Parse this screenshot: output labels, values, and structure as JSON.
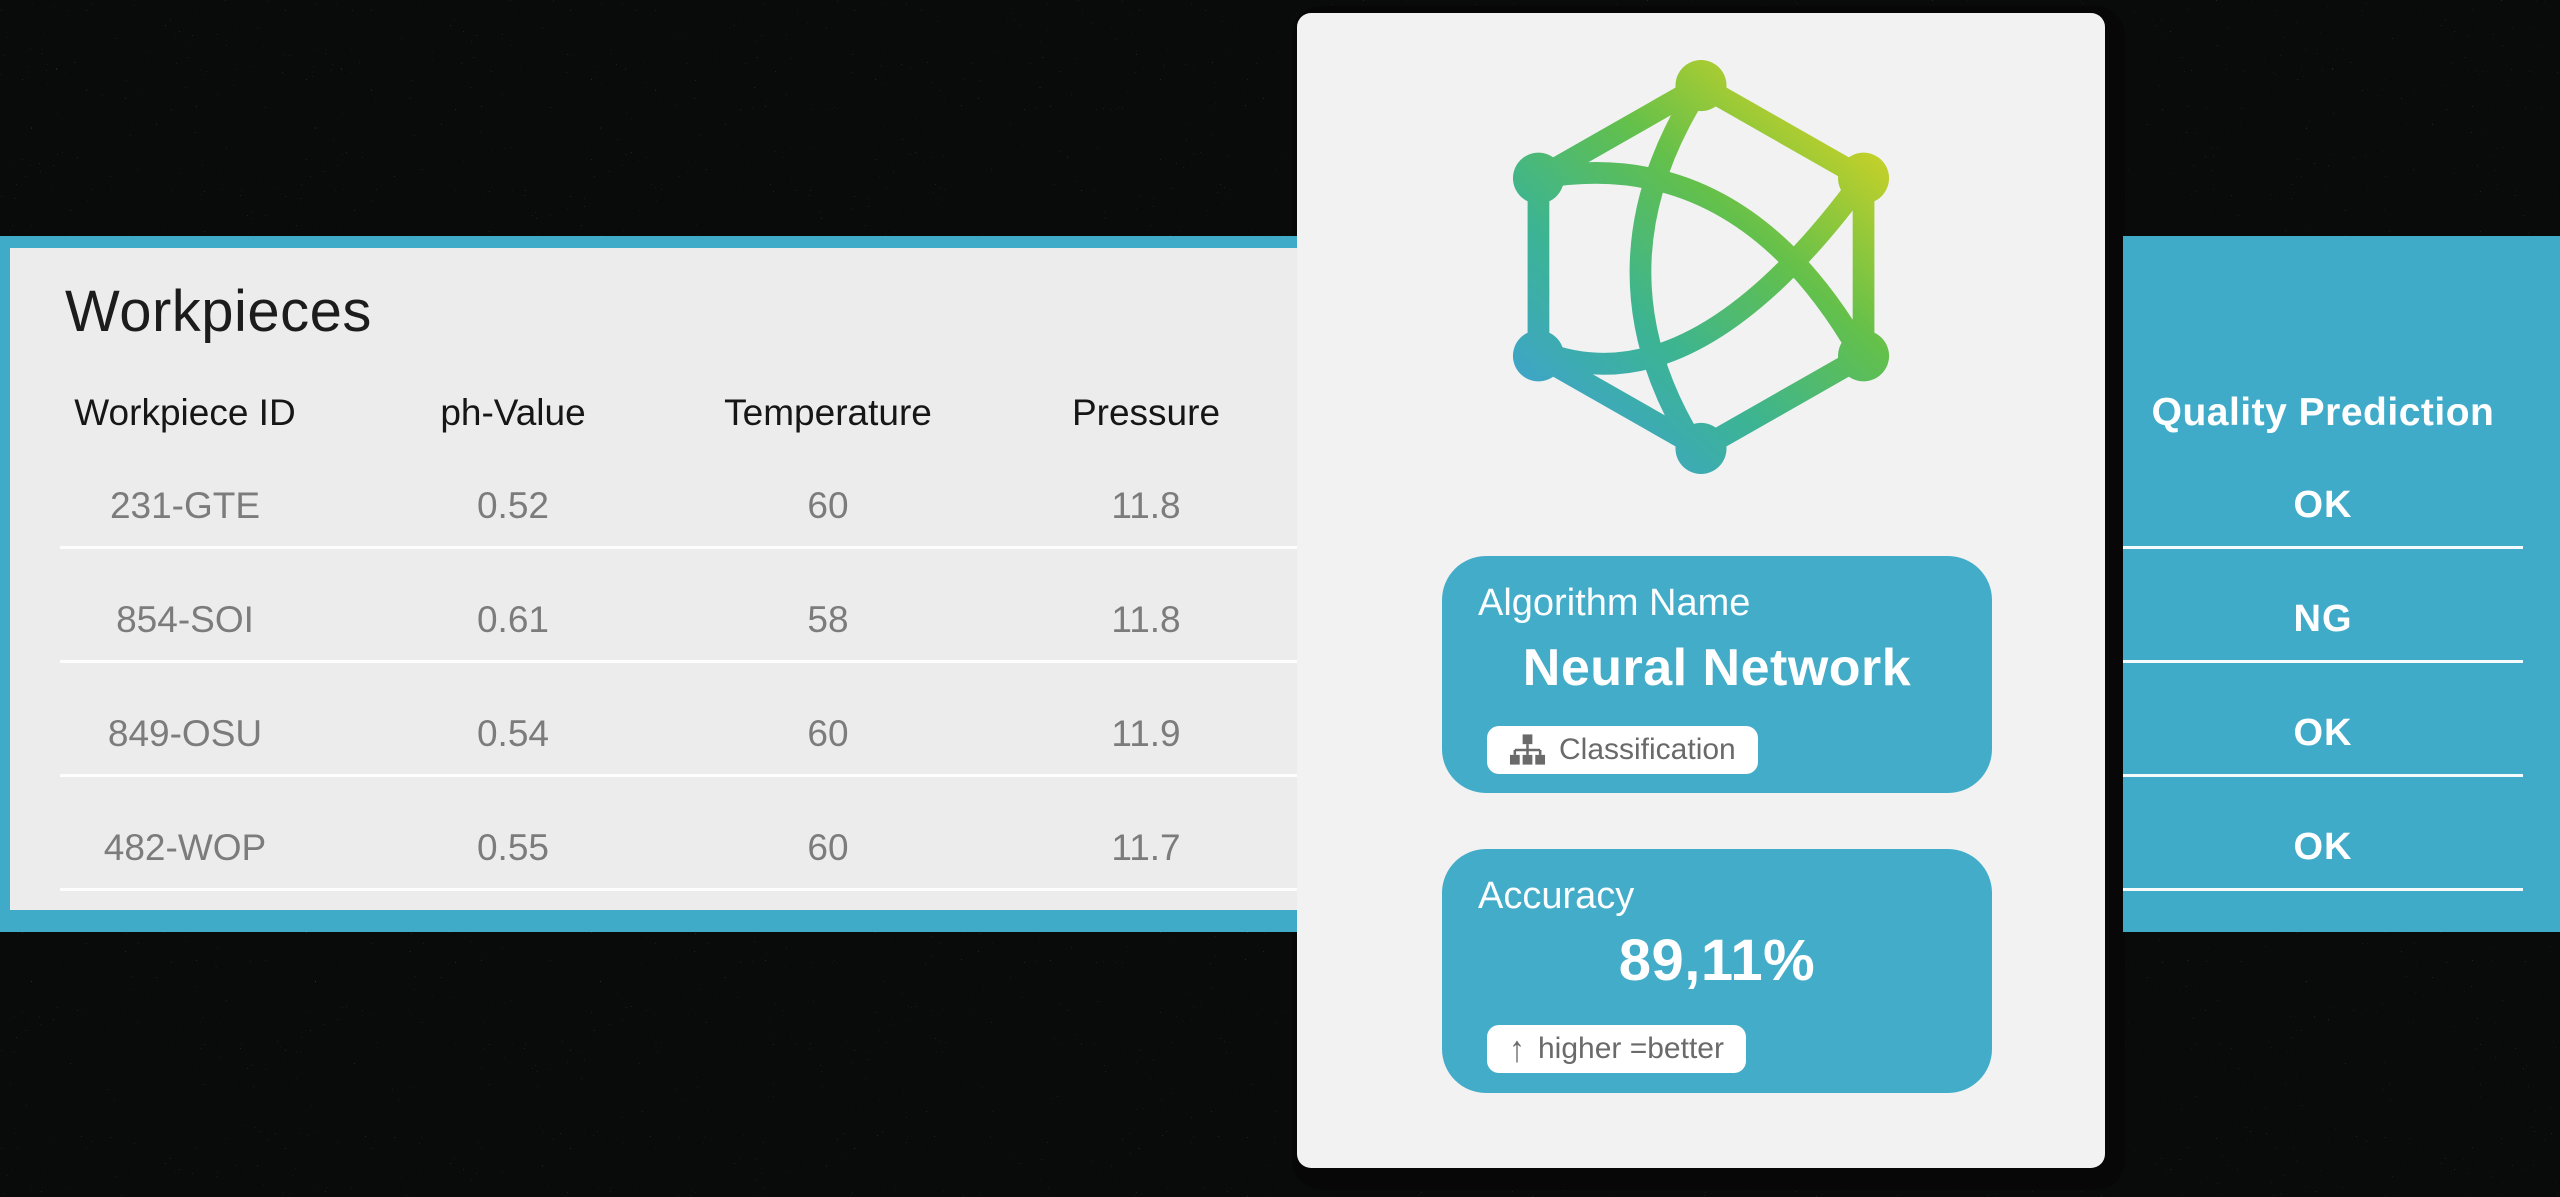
{
  "table": {
    "title": "Workpieces",
    "columns": [
      "Workpiece ID",
      "ph-Value",
      "Temperature",
      "Pressure"
    ],
    "rows": [
      [
        "231-GTE",
        "0.52",
        "60",
        "11.8"
      ],
      [
        "854-SOI",
        "0.61",
        "58",
        "11.8"
      ],
      [
        "849-OSU",
        "0.54",
        "60",
        "11.9"
      ],
      [
        "482-WOP",
        "0.55",
        "60",
        "11.7"
      ]
    ]
  },
  "prediction": {
    "header": "Quality Prediction",
    "values": [
      "OK",
      "NG",
      "OK",
      "OK"
    ]
  },
  "card": {
    "logo": "neural-network-cube-logo",
    "algorithm": {
      "label": "Algorithm Name",
      "name": "Neural Network",
      "tag": "Classification",
      "tag_icon": "hierarchy-icon"
    },
    "accuracy": {
      "label": "Accuracy",
      "value": "89,11%",
      "tag": "higher =better",
      "tag_icon": "arrow-up-icon"
    }
  },
  "colors": {
    "accent_teal": "#3fabc9",
    "panel_gray": "#ececec",
    "card_gray": "#f2f2f2",
    "background_green": "#567a61",
    "shadow_black": "#070707",
    "row_text_gray": "#7c7c7c",
    "logo_gradient": [
      "#3fa0d8",
      "#3cb493",
      "#63c04b",
      "#e0d51f"
    ]
  }
}
